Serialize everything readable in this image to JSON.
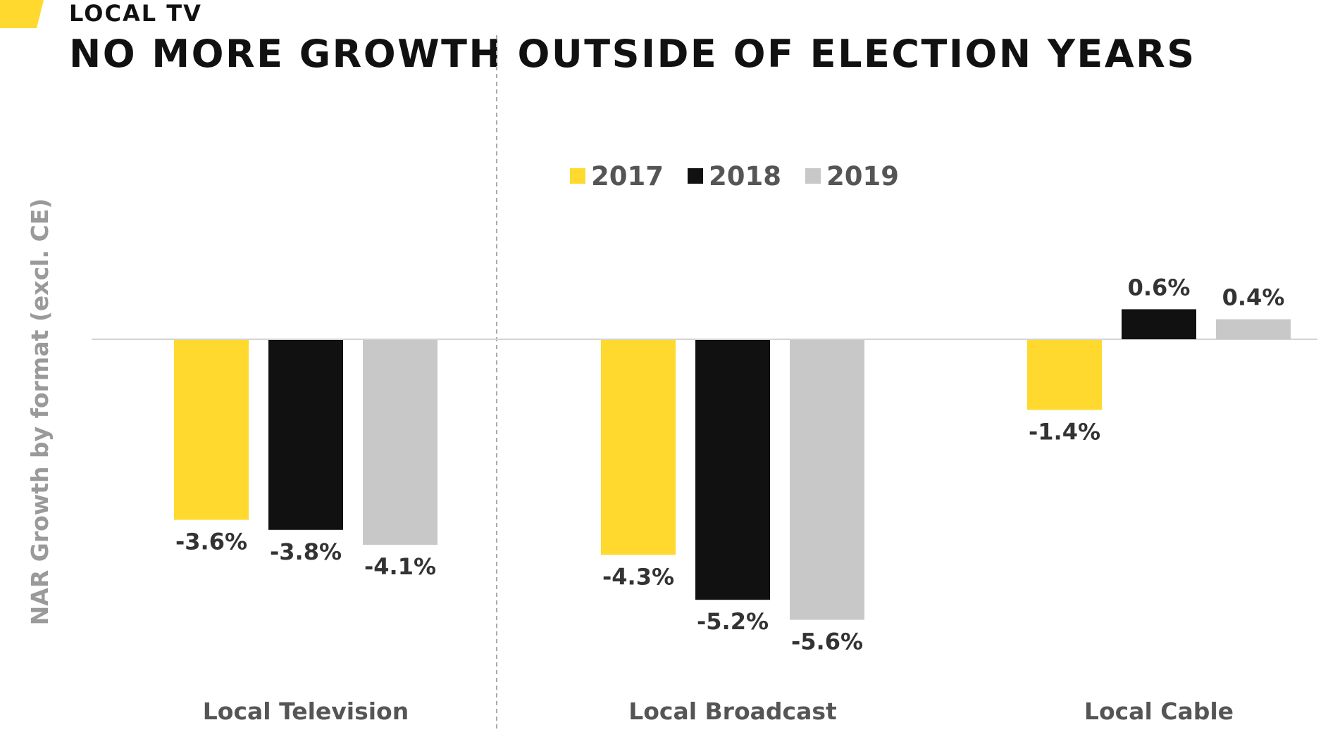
{
  "header": {
    "section_label": "LOCAL TV",
    "title": "NO MORE GROWTH OUTSIDE OF ELECTION YEARS",
    "accent_color": "#FFD92E"
  },
  "chart_data": {
    "type": "bar",
    "title": "",
    "xlabel": "",
    "ylabel": "NAR Growth by format (excl. CE)",
    "categories": [
      "Local Television",
      "Local Broadcast",
      "Local Cable"
    ],
    "series": [
      {
        "name": "2017",
        "color": "#FFD92E",
        "values": [
          -3.6,
          -4.3,
          -1.4
        ],
        "labels": [
          "-3.6%",
          "-4.3%",
          "-1.4%"
        ]
      },
      {
        "name": "2018",
        "color": "#111111",
        "values": [
          -3.8,
          -5.2,
          0.6
        ],
        "labels": [
          "-3.8%",
          "-5.2%",
          "0.6%"
        ]
      },
      {
        "name": "2019",
        "color": "#C8C8C8",
        "values": [
          -4.1,
          -5.6,
          0.4
        ],
        "labels": [
          "-4.1%",
          "-5.6%",
          "0.4%"
        ]
      }
    ],
    "ylim": [
      -6.5,
      1.2
    ],
    "grid": false,
    "legend_position": "top-center",
    "divider": "dashed vertical line between Local Television and Local Broadcast"
  }
}
